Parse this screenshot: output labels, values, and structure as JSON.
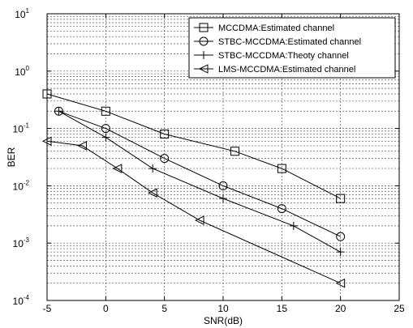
{
  "chart_data": {
    "type": "line",
    "title": "",
    "xlabel": "SNR(dB)",
    "ylabel": "BER",
    "xlim": [
      -5,
      25
    ],
    "ylim": [
      0.0001,
      10
    ],
    "yscale": "log",
    "grid": true,
    "legend_position": "top-right",
    "x_ticks": [
      "-5",
      "0",
      "5",
      "10",
      "15",
      "20",
      "25"
    ],
    "y_ticks": [
      {
        "base": "10",
        "exp": "1",
        "value": 10
      },
      {
        "base": "10",
        "exp": "0",
        "value": 1
      },
      {
        "base": "10",
        "exp": "-1",
        "value": 0.1
      },
      {
        "base": "10",
        "exp": "-2",
        "value": 0.01
      },
      {
        "base": "10",
        "exp": "-3",
        "value": 0.001
      },
      {
        "base": "10",
        "exp": "-4",
        "value": 0.0001
      }
    ],
    "series": [
      {
        "name": "MCCDMA:Estimated channel",
        "marker": "square",
        "x": [
          -5,
          0,
          5,
          11,
          15,
          20
        ],
        "y": [
          0.4,
          0.2,
          0.08,
          0.04,
          0.02,
          0.006
        ]
      },
      {
        "name": "STBC-MCCDMA:Estimated channel",
        "marker": "circle",
        "x": [
          -4,
          0,
          5,
          10,
          15,
          20
        ],
        "y": [
          0.2,
          0.1,
          0.03,
          0.01,
          0.004,
          0.0013
        ]
      },
      {
        "name": "STBC-MCCDMA:Theoty channel",
        "marker": "plus",
        "x": [
          -4,
          0,
          4,
          10,
          16,
          20
        ],
        "y": [
          0.2,
          0.07,
          0.02,
          0.006,
          0.002,
          0.0007
        ]
      },
      {
        "name": "LMS-MCCDMA:Estimated channel",
        "marker": "triangle-left",
        "x": [
          -5,
          -2,
          1,
          4,
          8,
          20
        ],
        "y": [
          0.06,
          0.05,
          0.02,
          0.0075,
          0.0025,
          0.0002
        ]
      }
    ]
  }
}
